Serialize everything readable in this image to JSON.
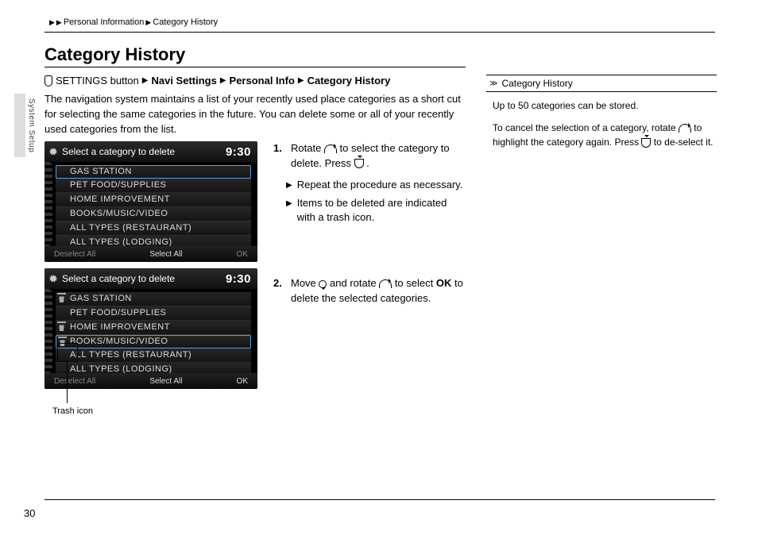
{
  "breadcrumb": {
    "a": "Personal Information",
    "b": "Category History"
  },
  "sideTab": "System Setup",
  "title": "Category History",
  "path": {
    "lead": "SETTINGS button",
    "p1": "Navi Settings",
    "p2": "Personal Info",
    "p3": "Category History"
  },
  "intro": "The navigation system maintains a list of your recently used place categories as a short cut for selecting the same categories in the future. You can delete some or all of your recently used categories from the list.",
  "screen": {
    "header": "Select a category to delete",
    "clock": "9:30",
    "items": [
      "GAS STATION",
      "PET FOOD/SUPPLIES",
      "HOME IMPROVEMENT",
      "BOOKS/MUSIC/VIDEO",
      "ALL TYPES (RESTAURANT)",
      "ALL TYPES (LODGING)"
    ],
    "foot": {
      "left": "Deselect All",
      "mid": "Select All",
      "right": "OK"
    },
    "trashedIdx": [
      0,
      2,
      3
    ]
  },
  "trashLabel": "Trash icon",
  "steps": {
    "s1_a": "Rotate ",
    "s1_b": " to select the category to delete. Press ",
    "s1_c": ".",
    "s1_sub1": "Repeat the procedure as necessary.",
    "s1_sub2": "Items to be deleted are indicated with a trash icon.",
    "s2_a": "Move ",
    "s2_b": " and rotate ",
    "s2_c": " to select ",
    "s2_ok": "OK",
    "s2_d": " to delete the selected categories."
  },
  "right": {
    "head": "Category History",
    "p1": "Up to 50 categories can be stored.",
    "p2_a": "To cancel the selection of a category, rotate ",
    "p2_b": " to highlight the category again. Press ",
    "p2_c": " to de-select it."
  },
  "pageNum": "30"
}
